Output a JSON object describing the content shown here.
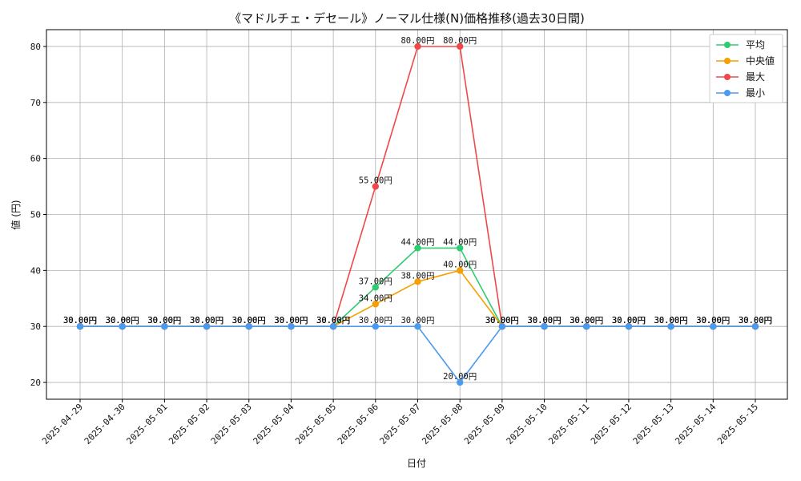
{
  "chart_data": {
    "type": "line",
    "title": "《マドルチェ・デセール》ノーマル仕様(N)価格推移(過去30日間)",
    "xlabel": "日付",
    "ylabel": "値 (円)",
    "ylim": [
      17,
      83
    ],
    "yticks": [
      20,
      30,
      40,
      50,
      60,
      70,
      80
    ],
    "grid": true,
    "legend_position": "top-right",
    "value_suffix": "円",
    "categories": [
      "2025-04-29",
      "2025-04-30",
      "2025-05-01",
      "2025-05-02",
      "2025-05-03",
      "2025-05-04",
      "2025-05-05",
      "2025-05-06",
      "2025-05-07",
      "2025-05-08",
      "2025-05-09",
      "2025-05-10",
      "2025-05-11",
      "2025-05-12",
      "2025-05-13",
      "2025-05-14",
      "2025-05-15"
    ],
    "series": [
      {
        "name": "平均",
        "color": "#2ecc71",
        "values": [
          30,
          30,
          30,
          30,
          30,
          30,
          30,
          37,
          44,
          44,
          30,
          30,
          30,
          30,
          30,
          30,
          30
        ]
      },
      {
        "name": "中央値",
        "color": "#f5a000",
        "values": [
          30,
          30,
          30,
          30,
          30,
          30,
          30,
          34,
          38,
          40,
          30,
          30,
          30,
          30,
          30,
          30,
          30
        ]
      },
      {
        "name": "最大",
        "color": "#f04848",
        "values": [
          30,
          30,
          30,
          30,
          30,
          30,
          30,
          55,
          80,
          80,
          30,
          30,
          30,
          30,
          30,
          30,
          30
        ]
      },
      {
        "name": "最小",
        "color": "#4a9af0",
        "values": [
          30,
          30,
          30,
          30,
          30,
          30,
          30,
          30,
          30,
          20,
          30,
          30,
          30,
          30,
          30,
          30,
          30
        ]
      }
    ]
  }
}
